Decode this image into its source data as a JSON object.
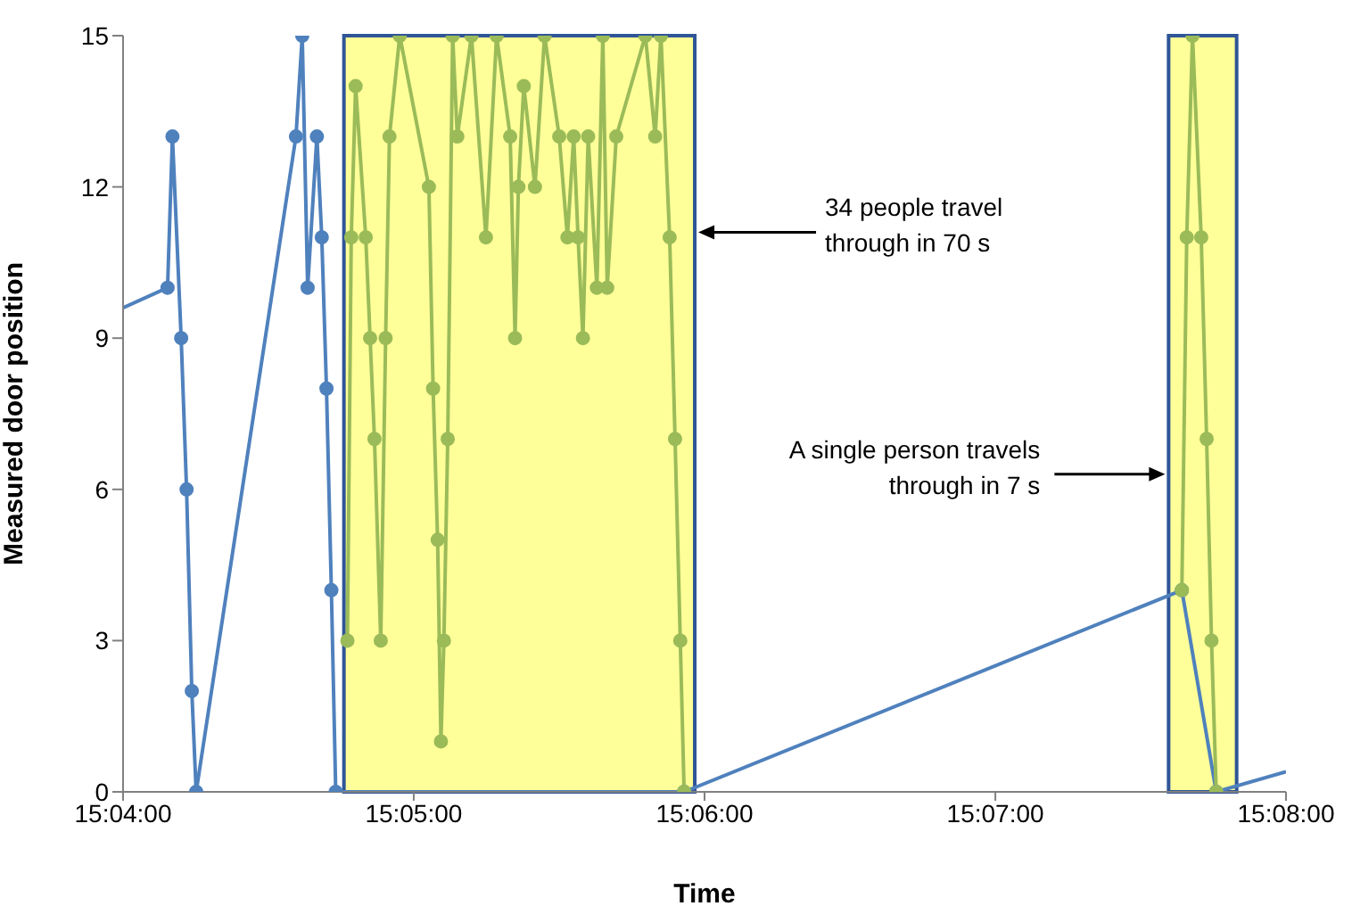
{
  "chart_data": {
    "type": "line",
    "xlabel": "Time",
    "ylabel": "Measured door position",
    "xlim": [
      15.06667,
      15.13333
    ],
    "xticks": [
      {
        "value": 15.06667,
        "label": "15:04:00"
      },
      {
        "value": 15.08333,
        "label": "15:05:00"
      },
      {
        "value": 15.1,
        "label": "15:06:00"
      },
      {
        "value": 15.11667,
        "label": "15:07:00"
      },
      {
        "value": 15.13333,
        "label": "15:08:00"
      }
    ],
    "ylim": [
      0,
      15
    ],
    "yticks": [
      0,
      3,
      6,
      9,
      12,
      15
    ],
    "marker": "circle",
    "line_style": "solid",
    "series": [
      {
        "color": "#4f81bd",
        "x": [
          15.06667,
          15.06922,
          15.0695,
          15.07,
          15.07031,
          15.07061,
          15.07086,
          15.07658,
          15.07694,
          15.07725,
          15.07778,
          15.07806,
          15.07833,
          15.07861,
          15.07886,
          15.09883,
          15.12736,
          15.12933,
          15.13333
        ],
        "values": [
          9.6,
          10,
          13,
          9,
          6,
          2,
          0,
          13,
          15,
          10,
          13,
          11,
          8,
          4,
          0,
          0,
          4,
          0,
          0.4
        ]
      },
      {
        "color": "#9bbb59",
        "x": [
          15.07953,
          15.07975,
          15.08,
          15.08058,
          15.08083,
          15.08108,
          15.08144,
          15.08172,
          15.08194,
          15.08253,
          15.0842,
          15.08444,
          15.0847,
          15.08489,
          15.08506,
          15.08528,
          15.08556,
          15.08583,
          15.08664,
          15.08747,
          15.08808,
          15.08886,
          15.08914,
          15.08933,
          15.08964,
          15.09028,
          15.09083,
          15.09167,
          15.09214,
          15.0925,
          15.09275,
          15.09303,
          15.09333,
          15.09383,
          15.09417,
          15.09442,
          15.09494,
          15.09661,
          15.09717,
          15.0975,
          15.098,
          15.09831,
          15.09861,
          15.09883
        ],
        "values": [
          3,
          11,
          14,
          11,
          9,
          7,
          3,
          9,
          13,
          15,
          12,
          8,
          5,
          1,
          3,
          7,
          15,
          13,
          15,
          11,
          15,
          13,
          9,
          12,
          14,
          12,
          15,
          13,
          11,
          13,
          11,
          9,
          13,
          10,
          15,
          10,
          13,
          15,
          13,
          15,
          11,
          7,
          3,
          0
        ]
      },
      {
        "color": "#9bbb59",
        "x": [
          15.12736,
          15.12764,
          15.12797,
          15.12847,
          15.12878,
          15.12906,
          15.12933
        ],
        "values": [
          4,
          11,
          15,
          11,
          7,
          3,
          0
        ]
      }
    ],
    "bands": [
      {
        "axis": "x",
        "from": 15.07933,
        "to": 15.09944,
        "color": "#ffff99"
      },
      {
        "axis": "x",
        "from": 15.1266,
        "to": 15.1305,
        "color": "#ffff99"
      }
    ],
    "annotations": [
      "34 people travel\nthrough in 70 s",
      {
        "text": "A single person travels\nthrough in 7 s",
        "x": 15.1266,
        "y": 6.3
      }
    ]
  }
}
